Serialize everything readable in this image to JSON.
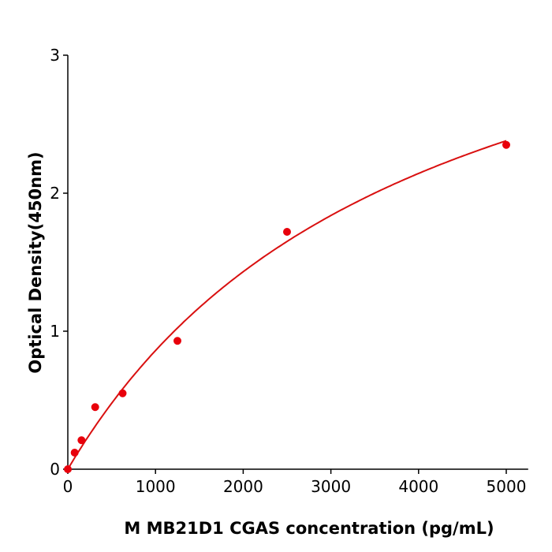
{
  "chart_data": {
    "type": "scatter",
    "title": "",
    "xlabel": "M  MB21D1  CGAS concentration (pg/mL)",
    "ylabel": "Optical Density(450nm)",
    "xlim": [
      0,
      5250
    ],
    "ylim": [
      0,
      3
    ],
    "xticks": [
      "0",
      "1000",
      "2000",
      "3000",
      "4000",
      "5000"
    ],
    "yticks": [
      "0",
      "1",
      "2",
      "3"
    ],
    "grid": false,
    "x": [
      0,
      78,
      156,
      312,
      625,
      1250,
      2500,
      5000
    ],
    "y": [
      0.0,
      0.12,
      0.21,
      0.45,
      0.55,
      0.93,
      1.72,
      2.35
    ],
    "fit_curve": true,
    "colors": {
      "points": "#e8000b",
      "curve": "#d91010",
      "axes": "#000000"
    }
  }
}
